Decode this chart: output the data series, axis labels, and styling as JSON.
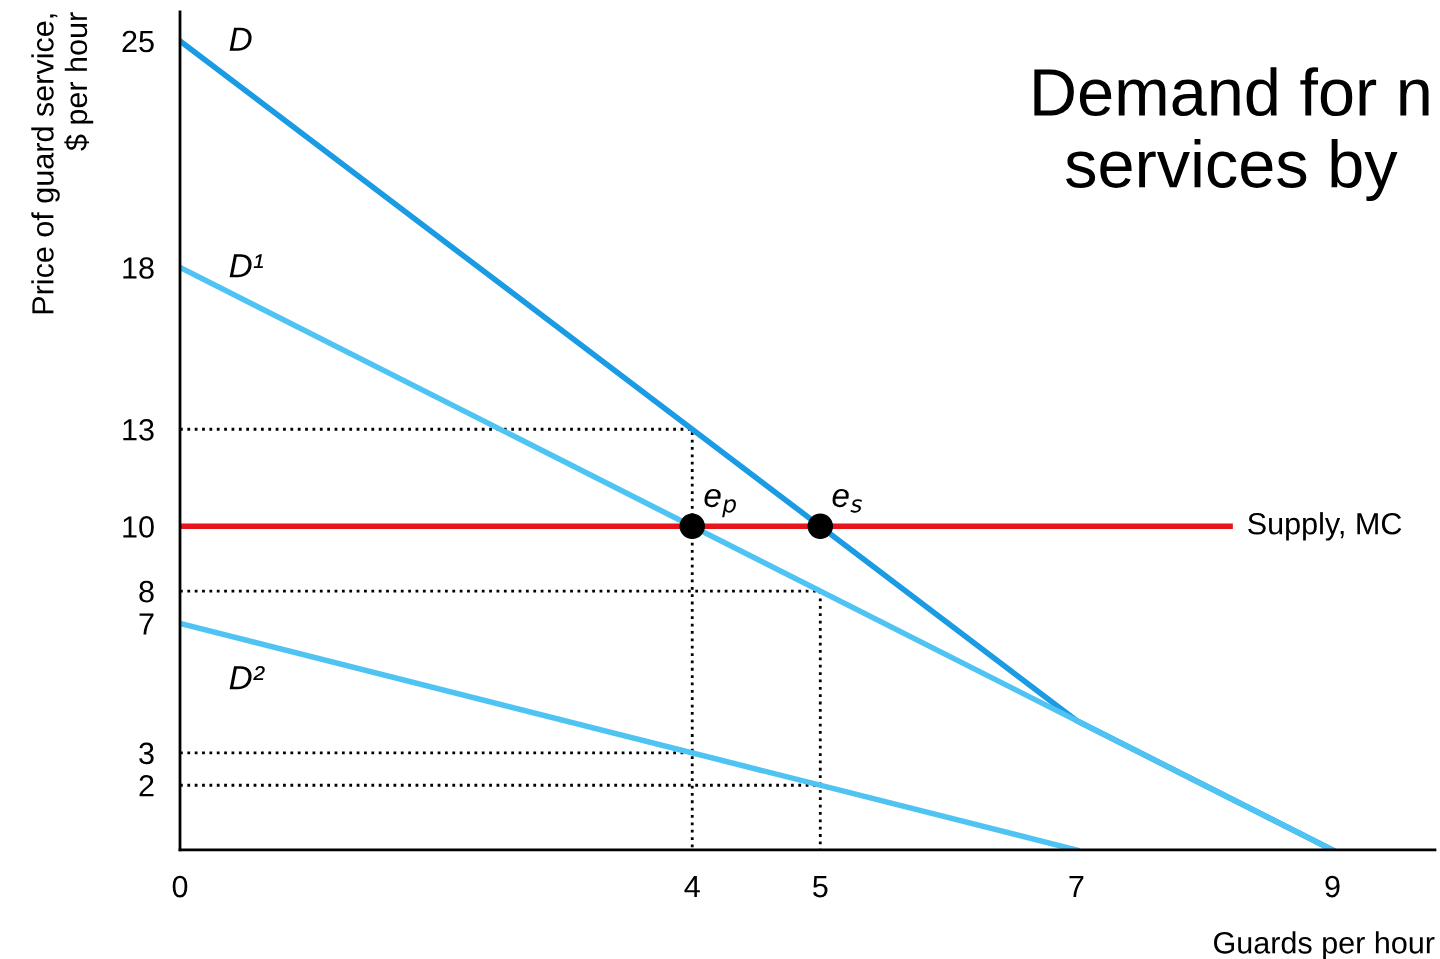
{
  "chart_data": {
    "type": "line",
    "title": "Demand for n\nservices by",
    "xlabel": "Guards per hour",
    "ylabel": "Price of guard service,\n$ per hour",
    "xlim": [
      0,
      9.8
    ],
    "ylim": [
      0,
      25.9
    ],
    "xticks": [
      0,
      4,
      5,
      7,
      9
    ],
    "yticks": [
      2,
      3,
      7,
      8,
      10,
      13,
      18,
      25
    ],
    "grid": false,
    "marker": "none",
    "line_style": "solid",
    "series": [
      {
        "name": "D",
        "color": "#1a9be3",
        "x": [
          0,
          7,
          9
        ],
        "values": [
          25,
          4,
          0
        ]
      },
      {
        "name": "D¹",
        "color": "#4fc4f2",
        "x": [
          0,
          9
        ],
        "values": [
          18,
          0
        ]
      },
      {
        "name": "D²",
        "color": "#4fc4f2",
        "x": [
          0,
          7
        ],
        "values": [
          7,
          0
        ]
      },
      {
        "name": "Supply, MC",
        "color": "#e8141c",
        "x": [
          0,
          8.2
        ],
        "values": [
          10,
          10
        ]
      },
      {
        "type": "line",
        "line_style": "dotted",
        "color": "#000000",
        "x": [
          0,
          4,
          4
        ],
        "values": [
          13,
          13,
          0
        ]
      },
      {
        "type": "line",
        "line_style": "dotted",
        "color": "#000000",
        "x": [
          0,
          5,
          5
        ],
        "values": [
          8,
          8,
          0
        ]
      },
      {
        "type": "line",
        "line_style": "dotted",
        "color": "#000000",
        "x": [
          0,
          4
        ],
        "values": [
          3,
          3
        ]
      },
      {
        "type": "line",
        "line_style": "dotted",
        "color": "#000000",
        "x": [
          0,
          5
        ],
        "values": [
          2,
          2
        ]
      },
      {
        "type": "scatter",
        "marker": "circle",
        "color": "#000000",
        "x": [
          4,
          5
        ],
        "values": [
          10,
          10
        ]
      }
    ],
    "annotations": [
      {
        "text": "e$_{p}$",
        "x": 4,
        "y": 10
      },
      {
        "text": "e$_{s}$",
        "x": 5,
        "y": 10
      }
    ]
  }
}
